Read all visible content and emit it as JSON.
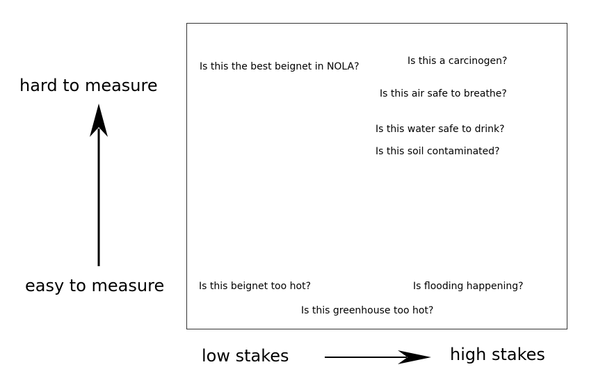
{
  "y_axis": {
    "top_label": "hard to measure",
    "bottom_label": "easy to measure"
  },
  "x_axis": {
    "left_label": "low stakes",
    "right_label": "high stakes"
  },
  "questions": [
    "Is this the best beignet in NOLA?",
    "Is this a carcinogen?",
    "Is this air safe to breathe?",
    "Is this water safe to drink?",
    "Is this soil contaminated?",
    "Is this beignet too hot?",
    "Is flooding happening?",
    "Is this greenhouse too hot?"
  ]
}
